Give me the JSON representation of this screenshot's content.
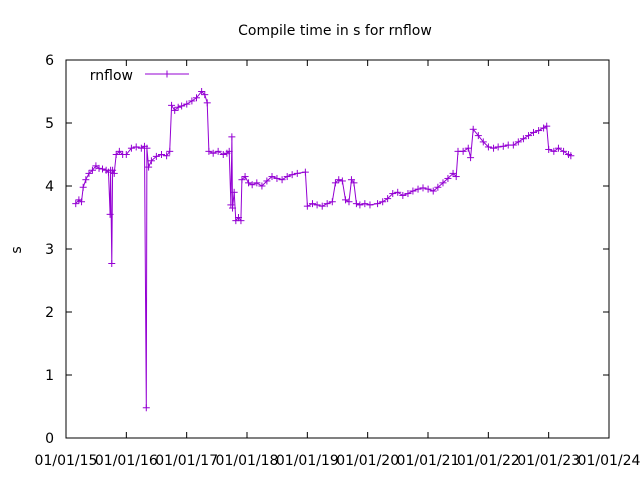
{
  "chart_data": {
    "type": "line",
    "title": "Compile time in s for rnflow",
    "xlabel": "",
    "ylabel": "s",
    "ylim": [
      0,
      6
    ],
    "xlim": [
      "2015-01-01",
      "2024-01-01"
    ],
    "x_ticks": [
      "01/01/15",
      "01/01/16",
      "01/01/17",
      "01/01/18",
      "01/01/19",
      "01/01/20",
      "01/01/21",
      "01/01/22",
      "01/01/23",
      "01/01/24"
    ],
    "y_ticks": [
      "0",
      "1",
      "2",
      "3",
      "4",
      "5",
      "6"
    ],
    "grid": false,
    "legend": "top-left",
    "series_color": "#9400d3",
    "series": [
      {
        "name": "rnflow",
        "points": [
          [
            "2015-03-01",
            3.72
          ],
          [
            "2015-03-20",
            3.78
          ],
          [
            "2015-04-05",
            3.75
          ],
          [
            "2015-04-15",
            3.98
          ],
          [
            "2015-05-01",
            4.1
          ],
          [
            "2015-05-20",
            4.2
          ],
          [
            "2015-06-10",
            4.25
          ],
          [
            "2015-07-01",
            4.32
          ],
          [
            "2015-07-20",
            4.28
          ],
          [
            "2015-08-10",
            4.27
          ],
          [
            "2015-09-01",
            4.25
          ],
          [
            "2015-09-15",
            4.22
          ],
          [
            "2015-09-25",
            3.55
          ],
          [
            "2015-09-28",
            4.25
          ],
          [
            "2015-10-05",
            2.77
          ],
          [
            "2015-10-10",
            4.25
          ],
          [
            "2015-10-20",
            4.2
          ],
          [
            "2015-11-01",
            4.5
          ],
          [
            "2015-11-20",
            4.55
          ],
          [
            "2015-12-10",
            4.5
          ],
          [
            "2016-01-01",
            4.5
          ],
          [
            "2016-02-01",
            4.6
          ],
          [
            "2016-03-01",
            4.62
          ],
          [
            "2016-04-01",
            4.6
          ],
          [
            "2016-04-20",
            4.63
          ],
          [
            "2016-05-01",
            0.48
          ],
          [
            "2016-05-05",
            4.6
          ],
          [
            "2016-05-15",
            4.3
          ],
          [
            "2016-06-01",
            4.4
          ],
          [
            "2016-07-01",
            4.47
          ],
          [
            "2016-08-01",
            4.5
          ],
          [
            "2016-09-01",
            4.48
          ],
          [
            "2016-09-20",
            4.55
          ],
          [
            "2016-10-01",
            5.28
          ],
          [
            "2016-10-20",
            5.2
          ],
          [
            "2016-11-10",
            5.25
          ],
          [
            "2016-12-01",
            5.27
          ],
          [
            "2017-01-01",
            5.3
          ],
          [
            "2017-02-01",
            5.35
          ],
          [
            "2017-03-01",
            5.4
          ],
          [
            "2017-04-01",
            5.5
          ],
          [
            "2017-04-20",
            5.45
          ],
          [
            "2017-05-05",
            5.32
          ],
          [
            "2017-05-15",
            4.55
          ],
          [
            "2017-06-10",
            4.52
          ],
          [
            "2017-07-10",
            4.55
          ],
          [
            "2017-08-10",
            4.5
          ],
          [
            "2017-09-01",
            4.52
          ],
          [
            "2017-09-15",
            4.55
          ],
          [
            "2017-09-25",
            3.7
          ],
          [
            "2017-10-01",
            4.78
          ],
          [
            "2017-10-05",
            3.65
          ],
          [
            "2017-10-15",
            3.9
          ],
          [
            "2017-10-25",
            3.45
          ],
          [
            "2017-11-10",
            3.5
          ],
          [
            "2017-11-25",
            3.45
          ],
          [
            "2017-12-01",
            4.1
          ],
          [
            "2017-12-20",
            4.15
          ],
          [
            "2018-01-10",
            4.05
          ],
          [
            "2018-02-01",
            4.02
          ],
          [
            "2018-03-01",
            4.05
          ],
          [
            "2018-04-01",
            4.0
          ],
          [
            "2018-05-01",
            4.08
          ],
          [
            "2018-06-01",
            4.15
          ],
          [
            "2018-07-01",
            4.12
          ],
          [
            "2018-08-01",
            4.1
          ],
          [
            "2018-09-01",
            4.15
          ],
          [
            "2018-10-01",
            4.18
          ],
          [
            "2018-11-01",
            4.2
          ],
          [
            "2018-12-20",
            4.22
          ],
          [
            "2019-01-01",
            3.68
          ],
          [
            "2019-02-01",
            3.72
          ],
          [
            "2019-03-01",
            3.7
          ],
          [
            "2019-04-01",
            3.68
          ],
          [
            "2019-05-01",
            3.72
          ],
          [
            "2019-06-01",
            3.75
          ],
          [
            "2019-06-20",
            4.05
          ],
          [
            "2019-07-10",
            4.1
          ],
          [
            "2019-08-01",
            4.08
          ],
          [
            "2019-08-20",
            3.78
          ],
          [
            "2019-09-10",
            3.75
          ],
          [
            "2019-09-25",
            4.1
          ],
          [
            "2019-10-10",
            4.05
          ],
          [
            "2019-10-25",
            3.72
          ],
          [
            "2019-11-15",
            3.7
          ],
          [
            "2019-12-15",
            3.72
          ],
          [
            "2020-01-15",
            3.7
          ],
          [
            "2020-03-01",
            3.72
          ],
          [
            "2020-04-01",
            3.75
          ],
          [
            "2020-05-01",
            3.8
          ],
          [
            "2020-06-01",
            3.88
          ],
          [
            "2020-07-01",
            3.9
          ],
          [
            "2020-08-01",
            3.85
          ],
          [
            "2020-09-01",
            3.88
          ],
          [
            "2020-10-01",
            3.92
          ],
          [
            "2020-11-01",
            3.95
          ],
          [
            "2020-12-01",
            3.97
          ],
          [
            "2021-01-01",
            3.95
          ],
          [
            "2021-02-01",
            3.92
          ],
          [
            "2021-03-01",
            3.98
          ],
          [
            "2021-04-01",
            4.05
          ],
          [
            "2021-05-01",
            4.12
          ],
          [
            "2021-06-01",
            4.2
          ],
          [
            "2021-06-20",
            4.15
          ],
          [
            "2021-07-01",
            4.55
          ],
          [
            "2021-08-01",
            4.55
          ],
          [
            "2021-09-01",
            4.6
          ],
          [
            "2021-09-15",
            4.45
          ],
          [
            "2021-10-01",
            4.9
          ],
          [
            "2021-11-01",
            4.8
          ],
          [
            "2021-12-01",
            4.7
          ],
          [
            "2022-01-01",
            4.62
          ],
          [
            "2022-02-01",
            4.6
          ],
          [
            "2022-03-01",
            4.62
          ],
          [
            "2022-04-01",
            4.63
          ],
          [
            "2022-05-01",
            4.65
          ],
          [
            "2022-06-01",
            4.65
          ],
          [
            "2022-07-01",
            4.7
          ],
          [
            "2022-08-01",
            4.75
          ],
          [
            "2022-09-01",
            4.8
          ],
          [
            "2022-10-01",
            4.85
          ],
          [
            "2022-11-01",
            4.88
          ],
          [
            "2022-12-01",
            4.92
          ],
          [
            "2022-12-20",
            4.95
          ],
          [
            "2023-01-01",
            4.58
          ],
          [
            "2023-02-01",
            4.55
          ],
          [
            "2023-03-01",
            4.6
          ],
          [
            "2023-04-01",
            4.55
          ],
          [
            "2023-05-01",
            4.5
          ],
          [
            "2023-05-15",
            4.48
          ]
        ]
      }
    ]
  }
}
